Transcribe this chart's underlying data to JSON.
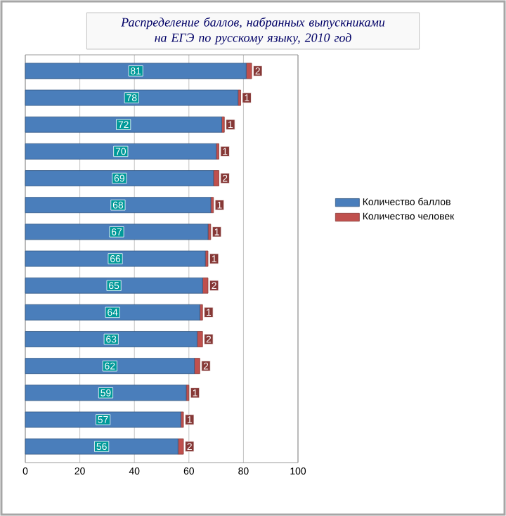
{
  "chart_data": {
    "type": "bar",
    "orientation": "horizontal",
    "stacked": true,
    "title": "Распределение баллов, набранных выпускниками на ЕГЭ по русскому языку, 2010 год",
    "categories": [
      null,
      null,
      null,
      null,
      null,
      null,
      null,
      null,
      null,
      null,
      null,
      null,
      null,
      null,
      null
    ],
    "series": [
      {
        "name": "Количество баллов",
        "color": "#4a7ebb",
        "values": [
          81,
          78,
          72,
          70,
          69,
          68,
          67,
          66,
          65,
          64,
          63,
          62,
          59,
          57,
          56
        ]
      },
      {
        "name": "Количество человек",
        "color": "#c0504d",
        "values": [
          2,
          1,
          1,
          1,
          2,
          1,
          1,
          1,
          2,
          1,
          2,
          2,
          1,
          1,
          2
        ]
      }
    ],
    "xlim": [
      0,
      100
    ],
    "xticks": [
      0,
      20,
      40,
      60,
      80,
      100
    ],
    "grid": "x",
    "legend": "right",
    "data_labels": true
  }
}
